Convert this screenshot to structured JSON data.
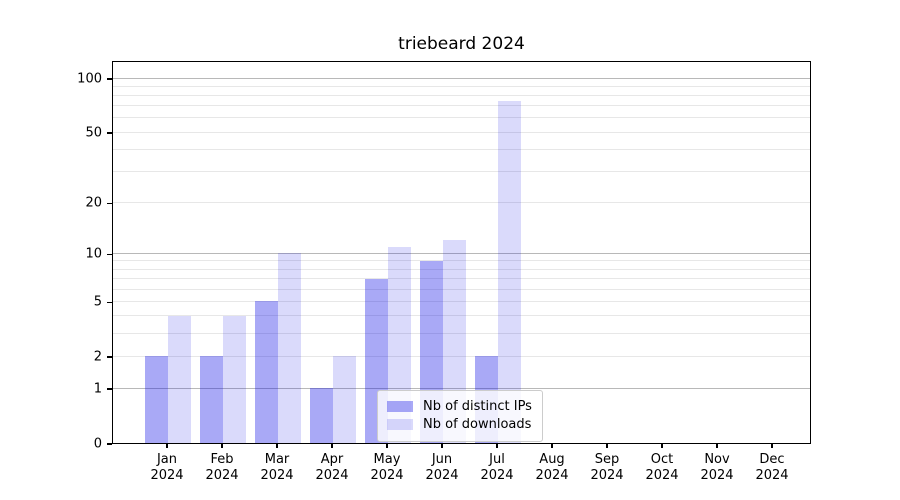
{
  "title": "triebeard 2024",
  "chart_data": {
    "type": "bar",
    "title": "triebeard 2024",
    "categories": [
      "Jan 2024",
      "Feb 2024",
      "Mar 2024",
      "Apr 2024",
      "May 2024",
      "Jun 2024",
      "Jul 2024",
      "Aug 2024",
      "Sep 2024",
      "Oct 2024",
      "Nov 2024",
      "Dec 2024"
    ],
    "series": [
      {
        "name": "Nb of distinct IPs",
        "values": [
          2,
          2,
          5,
          1,
          7,
          9,
          2,
          0,
          0,
          0,
          0,
          0
        ],
        "color": "rgba(10,10,230,0.35)"
      },
      {
        "name": "Nb of downloads",
        "values": [
          4,
          4,
          10,
          2,
          11,
          12,
          75,
          0,
          0,
          0,
          0,
          0
        ],
        "color": "rgba(10,10,230,0.15)"
      }
    ],
    "yscale": "log10(value+1)",
    "yticks": [
      0,
      1,
      2,
      5,
      10,
      20,
      50,
      100
    ],
    "ylim": [
      0,
      126
    ],
    "grid": true,
    "gridline_minor_values": [
      2,
      3,
      4,
      5,
      6,
      7,
      8,
      9,
      20,
      30,
      40,
      50,
      60,
      70,
      80,
      90
    ],
    "gridline_major_values": [
      1,
      10,
      100
    ],
    "legend_position": "lower center",
    "colors": {
      "bar_distinct_ips": "rgba(10,10,230,0.35)",
      "bar_downloads": "rgba(10,10,230,0.15)",
      "grid_minor": "#e7e7e7",
      "grid_major": "#b8b8b8",
      "axis": "#000000"
    }
  },
  "legend": {
    "items": [
      {
        "label": "Nb of distinct IPs"
      },
      {
        "label": "Nb of downloads"
      }
    ]
  }
}
